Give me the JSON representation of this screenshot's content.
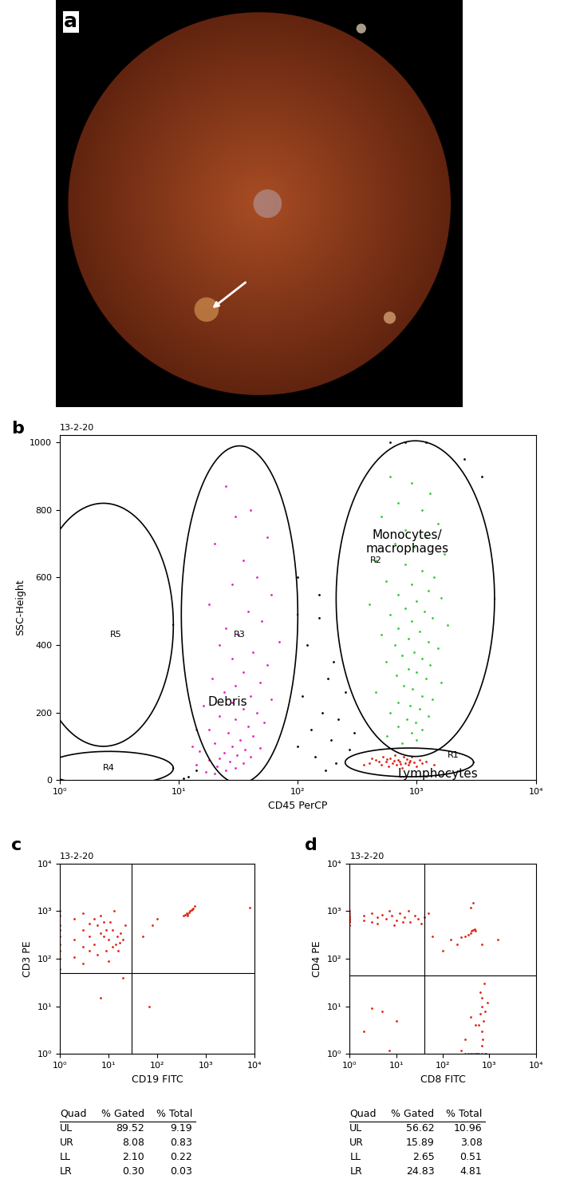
{
  "chart_data": [
    {
      "type": "image",
      "panel": "a"
    },
    {
      "type": "scatter",
      "panel": "b",
      "title": "13-2-20",
      "x_label": "CD45 PerCP",
      "y_label": "SSC-Height",
      "log": "x",
      "xlim": [
        1,
        10000
      ],
      "xticks": [
        {
          "value": 1,
          "label": "10⁰"
        },
        {
          "value": 10,
          "label": "10¹"
        },
        {
          "value": 100,
          "label": "10²"
        },
        {
          "value": 1000,
          "label": "10³"
        },
        {
          "value": 10000,
          "label": "10⁴"
        }
      ],
      "ylim": [
        0,
        1023
      ],
      "yticks": [
        0,
        200,
        400,
        600,
        800,
        1000
      ],
      "gates": [
        {
          "name": "R1",
          "label": "Lymphocytes",
          "x": [
            250,
            3000
          ],
          "y": [
            10,
            95
          ]
        },
        {
          "name": "R2",
          "label": "Monocytes/\nmacrophages",
          "x": [
            210,
            4500
          ],
          "y": [
            70,
            1005
          ]
        },
        {
          "name": "R3",
          "label": "Debris",
          "x": [
            10.5,
            100
          ],
          "y": [
            -10,
            990
          ]
        },
        {
          "name": "R4",
          "x": [
            0.75,
            9
          ],
          "y": [
            -15,
            85
          ]
        },
        {
          "name": "R5",
          "x": [
            0.6,
            9
          ],
          "y": [
            100,
            820
          ]
        }
      ],
      "series": [
        {
          "gate": "R2",
          "color": "#2ecc2e",
          "x": [
            600,
            900,
            1300,
            700,
            1100,
            500,
            1500,
            800,
            1200,
            650,
            950,
            1700,
            450,
            800,
            1100,
            1400,
            550,
            900,
            1250,
            700,
            1600,
            1000,
            400,
            800,
            1150,
            600,
            1350,
            900,
            1800,
            700,
            1050,
            500,
            850,
            1250,
            650,
            1500,
            950,
            750,
            1100,
            550,
            1300,
            850,
            1000,
            680,
            1200,
            1600,
            780,
            920,
            450,
            1100,
            1350,
            700,
            880,
            1050,
            600,
            1250,
            820,
            980,
            700,
            1100,
            900,
            560,
            1000,
            750
          ],
          "values": [
            900,
            880,
            850,
            820,
            800,
            780,
            760,
            740,
            720,
            700,
            690,
            670,
            650,
            640,
            620,
            600,
            590,
            580,
            560,
            550,
            540,
            530,
            520,
            510,
            500,
            490,
            480,
            470,
            460,
            450,
            440,
            430,
            420,
            410,
            400,
            390,
            380,
            370,
            360,
            350,
            340,
            330,
            320,
            310,
            300,
            290,
            280,
            270,
            260,
            250,
            240,
            230,
            220,
            210,
            200,
            190,
            180,
            170,
            160,
            150,
            140,
            130,
            120,
            110
          ]
        },
        {
          "gate": "R3",
          "color": "#e020c0",
          "x": [
            25,
            40,
            30,
            55,
            20,
            35,
            45,
            28,
            60,
            18,
            38,
            50,
            25,
            32,
            70,
            22,
            42,
            28,
            55,
            35,
            19,
            48,
            30,
            24,
            40,
            60,
            28,
            16,
            35,
            45,
            22,
            30,
            52,
            38,
            18,
            26,
            42,
            33,
            20,
            28,
            48,
            36,
            15,
            24,
            31,
            40,
            22,
            18,
            27,
            35,
            14,
            21,
            30,
            25,
            17,
            20,
            13,
            14
          ],
          "values": [
            870,
            800,
            780,
            720,
            700,
            650,
            600,
            580,
            550,
            520,
            500,
            470,
            450,
            430,
            410,
            400,
            380,
            360,
            340,
            320,
            300,
            290,
            280,
            260,
            250,
            240,
            230,
            220,
            210,
            200,
            190,
            180,
            170,
            160,
            150,
            140,
            130,
            120,
            110,
            100,
            95,
            90,
            85,
            80,
            75,
            70,
            65,
            60,
            55,
            50,
            45,
            40,
            35,
            30,
            25,
            20,
            100,
            150
          ]
        },
        {
          "gate": "R1",
          "color": "#e02010",
          "x": [
            400,
            450,
            500,
            520,
            550,
            580,
            600,
            620,
            650,
            680,
            700,
            720,
            750,
            780,
            800,
            820,
            850,
            880,
            900,
            950,
            1000,
            1050,
            1100,
            1200,
            1400,
            480,
            560,
            640,
            730,
            870,
            360,
            420
          ],
          "values": [
            50,
            60,
            45,
            70,
            55,
            40,
            65,
            50,
            75,
            45,
            60,
            55,
            35,
            70,
            50,
            62,
            45,
            58,
            68,
            52,
            40,
            60,
            50,
            55,
            45,
            55,
            62,
            58,
            48,
            52,
            45,
            65
          ]
        },
        {
          "color": "#000000",
          "x": [
            150,
            120,
            200,
            180,
            250,
            110,
            160,
            220,
            130,
            300,
            190,
            100,
            270,
            140,
            210,
            170,
            12,
            14,
            11,
            600,
            800,
            1200,
            2500,
            3500,
            100,
            150
          ],
          "values": [
            480,
            400,
            350,
            300,
            260,
            250,
            200,
            180,
            150,
            140,
            120,
            100,
            90,
            70,
            50,
            30,
            10,
            30,
            5,
            1000,
            1000,
            1000,
            950,
            900,
            600,
            550
          ]
        }
      ]
    },
    {
      "type": "scatter",
      "panel": "c",
      "title": "13-2-20",
      "x_label": "CD19 FITC",
      "y_label": "CD3 PE",
      "log": true,
      "xlim": [
        1,
        10000
      ],
      "ylim": [
        1,
        10000
      ],
      "xticks": [
        {
          "value": 1,
          "label": "10⁰"
        },
        {
          "value": 10,
          "label": "10¹"
        },
        {
          "value": 100,
          "label": "10²"
        },
        {
          "value": 1000,
          "label": "10³"
        },
        {
          "value": 10000,
          "label": "10⁴"
        }
      ],
      "yticks": [
        {
          "value": 1,
          "label": "10⁰"
        },
        {
          "value": 10,
          "label": "10¹"
        },
        {
          "value": 100,
          "label": "10²"
        },
        {
          "value": 1000,
          "label": "10³"
        },
        {
          "value": 10000,
          "label": "10⁴"
        }
      ],
      "quadrants": {
        "x": 30,
        "y": 50
      },
      "series": [
        {
          "color": "#e02010",
          "x": [
            1,
            1,
            1,
            1,
            1,
            1,
            1,
            1,
            1,
            2,
            3,
            2,
            4,
            5,
            3,
            6,
            8,
            4,
            7,
            10,
            12,
            9,
            15,
            11,
            14,
            18,
            13,
            6,
            3,
            20,
            8,
            16,
            5,
            2,
            10,
            12,
            7,
            4,
            22,
            9,
            17,
            3,
            350,
            380,
            400,
            420,
            450,
            470,
            500,
            520,
            550,
            600,
            420,
            50,
            80,
            100,
            8000,
            70,
            7,
            20
          ],
          "values": [
            100,
            300,
            500,
            800,
            200,
            1000,
            150,
            400,
            60,
            250,
            400,
            700,
            300,
            200,
            900,
            500,
            300,
            150,
            800,
            250,
            400,
            150,
            300,
            600,
            200,
            350,
            1000,
            120,
            180,
            250,
            600,
            150,
            700,
            110,
            90,
            180,
            350,
            550,
            500,
            400,
            220,
            80,
            800,
            850,
            900,
            880,
            950,
            1000,
            1050,
            1100,
            1150,
            1300,
            820,
            300,
            500,
            700,
            1200,
            10,
            15,
            40
          ]
        }
      ],
      "table": {
        "header": [
          "Quad",
          "% Gated",
          "% Total"
        ],
        "rows": [
          [
            "UL",
            "89.52",
            "9.19"
          ],
          [
            "UR",
            "8.08",
            "0.83"
          ],
          [
            "LL",
            "2.10",
            "0.22"
          ],
          [
            "LR",
            "0.30",
            "0.03"
          ]
        ]
      }
    },
    {
      "type": "scatter",
      "panel": "d",
      "title": "13-2-20",
      "x_label": "CD8 FITC",
      "y_label": "CD4 PE",
      "log": true,
      "xlim": [
        1,
        10000
      ],
      "ylim": [
        1,
        10000
      ],
      "xticks": [
        {
          "value": 1,
          "label": "10⁰"
        },
        {
          "value": 10,
          "label": "10¹"
        },
        {
          "value": 100,
          "label": "10²"
        },
        {
          "value": 1000,
          "label": "10³"
        },
        {
          "value": 10000,
          "label": "10⁴"
        }
      ],
      "yticks": [
        {
          "value": 1,
          "label": "10⁰"
        },
        {
          "value": 10,
          "label": "10¹"
        },
        {
          "value": 100,
          "label": "10²"
        },
        {
          "value": 1000,
          "label": "10³"
        },
        {
          "value": 10000,
          "label": "10⁴"
        }
      ],
      "quadrants": {
        "x": 40,
        "y": 45
      },
      "series": [
        {
          "color": "#e02010",
          "x": [
            1,
            1,
            1,
            1,
            1,
            1,
            1,
            1,
            2,
            3,
            2,
            4,
            5,
            6,
            3,
            8,
            10,
            12,
            15,
            20,
            25,
            30,
            35,
            40,
            7,
            18,
            50,
            9,
            4,
            14,
            100,
            150,
            200,
            250,
            300,
            350,
            400,
            420,
            450,
            480,
            500,
            400,
            450,
            700,
            1500,
            60,
            700,
            650,
            750,
            700,
            600,
            800,
            720,
            680,
            500,
            400,
            900,
            300,
            250,
            700,
            650,
            780,
            600,
            700,
            800,
            500,
            400,
            300,
            850,
            550,
            450,
            350,
            5,
            3,
            2,
            10,
            7
          ],
          "values": [
            600,
            700,
            800,
            900,
            1000,
            500,
            650,
            750,
            800,
            900,
            650,
            750,
            850,
            700,
            600,
            800,
            650,
            900,
            750,
            600,
            800,
            700,
            550,
            750,
            1000,
            1000,
            900,
            500,
            550,
            600,
            150,
            250,
            200,
            280,
            300,
            320,
            350,
            380,
            400,
            420,
            380,
            1200,
            1500,
            200,
            250,
            300,
            10,
            7,
            5,
            3,
            4,
            8,
            2,
            1.5,
            4,
            6,
            12,
            2,
            1.2,
            15,
            20,
            30,
            1,
            1,
            1,
            1,
            1,
            1,
            1,
            1,
            1,
            1,
            8,
            9,
            3,
            5,
            1.2
          ]
        }
      ],
      "table": {
        "header": [
          "Quad",
          "% Gated",
          "% Total"
        ],
        "rows": [
          [
            "UL",
            "56.62",
            "10.96"
          ],
          [
            "UR",
            "15.89",
            "3.08"
          ],
          [
            "LL",
            "2.65",
            "0.51"
          ],
          [
            "LR",
            "24.83",
            "4.81"
          ]
        ]
      }
    }
  ]
}
